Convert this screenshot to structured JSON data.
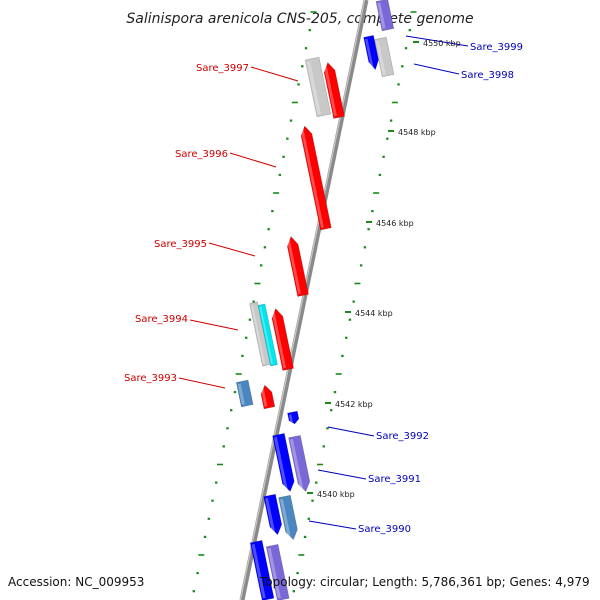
{
  "title": "Salinispora arenicola CNS-205, complete genome",
  "accession": "Accession: NC_009953",
  "topology": "Topology: circular; Length: 5,786,361 bp; Genes: 4,979",
  "colors": {
    "forward_label": "#cc0000",
    "reverse_label": "#0000bb",
    "forward_gene": "#ff0000",
    "reverse_gene": "#0000ff",
    "slate_gene": "#7b68d8",
    "steel_gene": "#4a86c0",
    "grey_gene": "#c8c8c8",
    "cyan_gene": "#00e6ee",
    "tick": "#1a8a1a",
    "backbone": "#888888"
  },
  "ruler": [
    {
      "label": "4540 kbp",
      "kb": 4540
    },
    {
      "label": "4542 kbp",
      "kb": 4542
    },
    {
      "label": "4544 kbp",
      "kb": 4544
    },
    {
      "label": "4546 kbp",
      "kb": 4546
    },
    {
      "label": "4548 kbp",
      "kb": 4548
    },
    {
      "label": "4550 kbp",
      "kb": 4550
    }
  ],
  "forward_labels": [
    {
      "name": "Sare_3997"
    },
    {
      "name": "Sare_3996"
    },
    {
      "name": "Sare_3995"
    },
    {
      "name": "Sare_3994"
    },
    {
      "name": "Sare_3993"
    }
  ],
  "reverse_labels": [
    {
      "name": "Sare_3999"
    },
    {
      "name": "Sare_3998"
    },
    {
      "name": "Sare_3992"
    },
    {
      "name": "Sare_3991"
    },
    {
      "name": "Sare_3990"
    }
  ]
}
